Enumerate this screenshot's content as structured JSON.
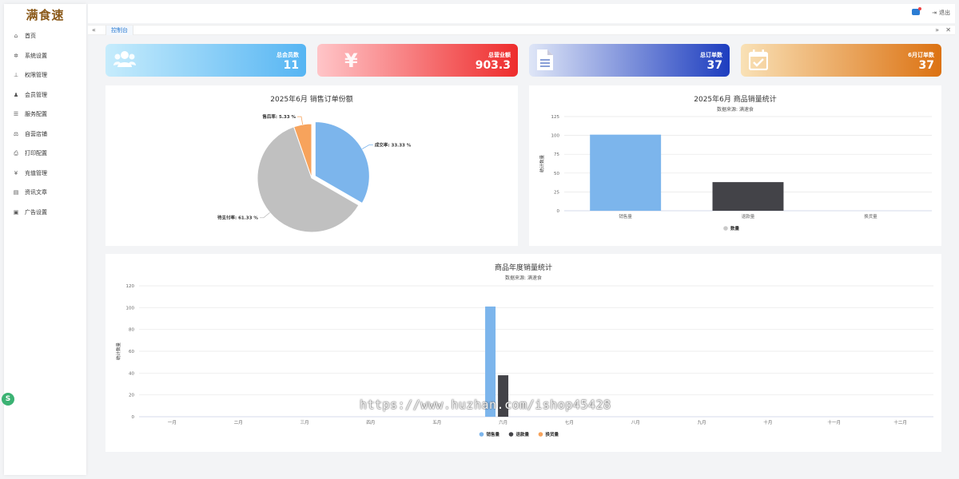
{
  "app": {
    "logo": "满食速"
  },
  "sidebar": {
    "items": [
      {
        "label": "首页",
        "icon": "home-icon",
        "glyph": "⌂"
      },
      {
        "label": "系统设置",
        "icon": "gear-icon",
        "glyph": "✲"
      },
      {
        "label": "权限管理",
        "icon": "sitemap-icon",
        "glyph": "⊥"
      },
      {
        "label": "会员管理",
        "icon": "users-icon",
        "glyph": "♟"
      },
      {
        "label": "服务配置",
        "icon": "list-icon",
        "glyph": "☰"
      },
      {
        "label": "自营店铺",
        "icon": "balance-icon",
        "glyph": "⚖"
      },
      {
        "label": "打印配置",
        "icon": "printer-icon",
        "glyph": "⎙"
      },
      {
        "label": "充值管理",
        "icon": "yen-icon",
        "glyph": "¥"
      },
      {
        "label": "资讯文章",
        "icon": "newspaper-icon",
        "glyph": "▤"
      },
      {
        "label": "广告设置",
        "icon": "image-icon",
        "glyph": "▣"
      }
    ]
  },
  "topbar": {
    "logout_label": "退出"
  },
  "tabs": {
    "active": "控制台"
  },
  "stats": [
    {
      "label": "总会员数",
      "value": "11",
      "icon": "users-icon",
      "glyph": "👥"
    },
    {
      "label": "总营业额",
      "value": "903.3",
      "icon": "yen-icon",
      "glyph": "¥"
    },
    {
      "label": "总订单数",
      "value": "37",
      "icon": "document-icon",
      "glyph": "▤"
    },
    {
      "label": "6月订单数",
      "value": "37",
      "icon": "calendar-check-icon",
      "glyph": "☑"
    }
  ],
  "badge": {
    "text": "S"
  },
  "watermark": "https://www.huzhan.com/ishop45428",
  "chart_data": [
    {
      "type": "pie",
      "title": "2025年6月 销售订单份额",
      "slices": [
        {
          "label": "成交率",
          "value": 33.33,
          "display": "成交率: 33.33 %",
          "color": "#7cb5ec"
        },
        {
          "label": "待支付率",
          "value": 61.33,
          "display": "待支付率: 61.33 %",
          "color": "#c0c0c0"
        },
        {
          "label": "售后率",
          "value": 5.33,
          "display": "售后率: 5.33 %",
          "color": "#f7a35c"
        }
      ]
    },
    {
      "type": "bar",
      "title": "2025年6月 商品销量统计",
      "subtitle": "数据来源: 满速食",
      "ylabel": "统计数量",
      "categories": [
        "销售量",
        "退款量",
        "换货量"
      ],
      "series": [
        {
          "name": "数量",
          "values": [
            101,
            38,
            0
          ],
          "colors": [
            "#7cb5ec",
            "#434348",
            "#f7a35c"
          ]
        }
      ],
      "ylim": [
        0,
        125
      ],
      "yticks": [
        0,
        25,
        50,
        75,
        100,
        125
      ],
      "legend": "bottom",
      "legend_color": "#c9c9c9"
    },
    {
      "type": "bar",
      "title": "商品年度销量统计",
      "subtitle": "数据来源: 满速食",
      "ylabel": "统计数量",
      "categories": [
        "一月",
        "二月",
        "三月",
        "四月",
        "五月",
        "六月",
        "七月",
        "八月",
        "九月",
        "十月",
        "十一月",
        "十二月"
      ],
      "series": [
        {
          "name": "销售量",
          "color": "#7cb5ec",
          "values": [
            0,
            0,
            0,
            0,
            0,
            101,
            0,
            0,
            0,
            0,
            0,
            0
          ]
        },
        {
          "name": "退款量",
          "color": "#434348",
          "values": [
            0,
            0,
            0,
            0,
            0,
            38,
            0,
            0,
            0,
            0,
            0,
            0
          ]
        },
        {
          "name": "换货量",
          "color": "#f7a35c",
          "values": [
            0,
            0,
            0,
            0,
            0,
            0,
            0,
            0,
            0,
            0,
            0,
            0
          ]
        }
      ],
      "ylim": [
        0,
        120
      ],
      "yticks": [
        0,
        20,
        40,
        60,
        80,
        100,
        120
      ],
      "legend": "bottom"
    }
  ]
}
